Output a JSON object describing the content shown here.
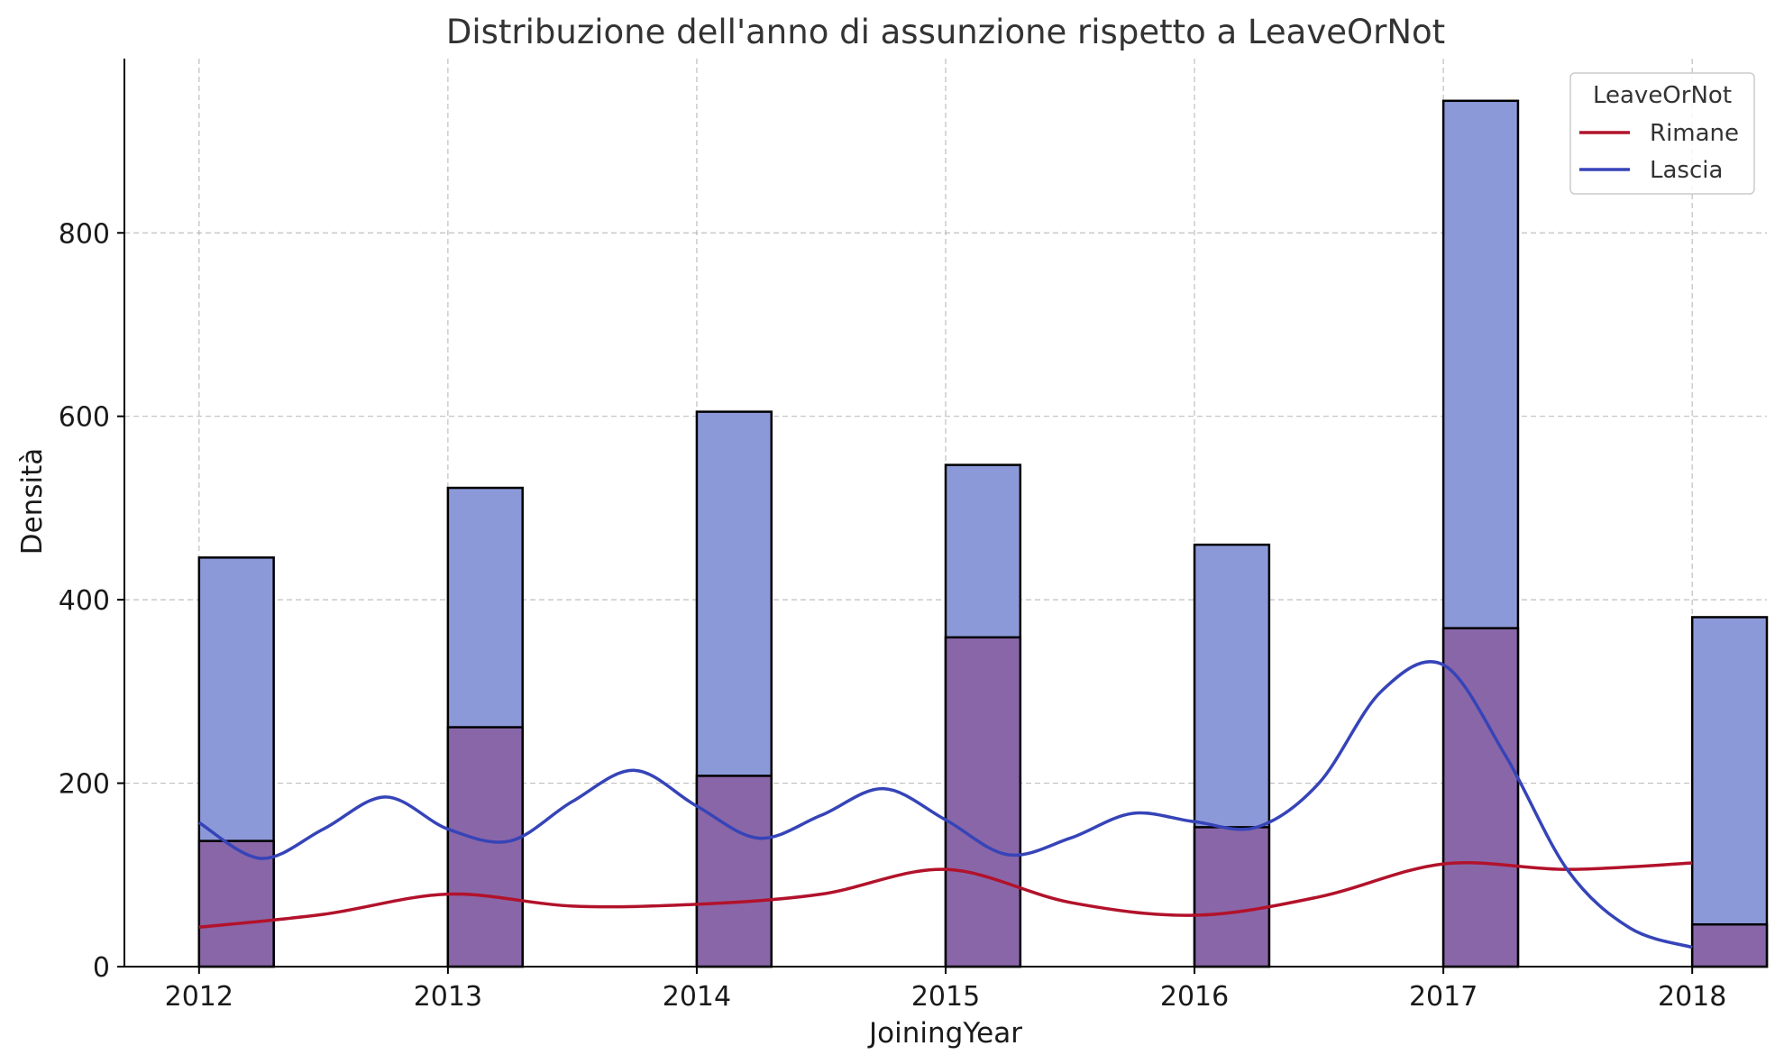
{
  "chart_data": {
    "type": "bar",
    "title": "Distribuzione dell'anno di assunzione rispetto a LeaveOrNot",
    "xlabel": "JoiningYear",
    "ylabel": "Densità",
    "x_ticks": [
      "2012",
      "2013",
      "2014",
      "2015",
      "2016",
      "2017",
      "2018"
    ],
    "y_ticks": [
      "0",
      "200",
      "400",
      "600",
      "800"
    ],
    "xlim": [
      2011.7,
      2018.3
    ],
    "ylim": [
      0,
      990
    ],
    "grid": true,
    "legend_placement": "top-right",
    "legend_title": "LeaveOrNot",
    "categories": [
      2012,
      2013,
      2014,
      2015,
      2016,
      2017,
      2018
    ],
    "series": [
      {
        "name": "Rimane",
        "bar_values": [
          446,
          522,
          605,
          547,
          460,
          944,
          381
        ],
        "kde_x": [
          2012,
          2012.5,
          2013,
          2013.5,
          2014,
          2014.5,
          2015,
          2015.5,
          2016,
          2016.5,
          2017,
          2017.5,
          2018
        ],
        "kde_y": [
          43,
          57,
          79,
          66,
          68,
          79,
          106,
          70,
          56,
          76,
          112,
          106,
          113
        ],
        "color": "#b2122b",
        "bar_fill": "#8c99d9",
        "bar_opacity": 0.85
      },
      {
        "name": "Lascia",
        "bar_values": [
          137,
          261,
          208,
          359,
          152,
          369,
          46
        ],
        "kde_x": [
          2012,
          2012.25,
          2012.5,
          2012.75,
          2013,
          2013.25,
          2013.5,
          2013.75,
          2014,
          2014.25,
          2014.5,
          2014.75,
          2015,
          2015.25,
          2015.5,
          2015.75,
          2016,
          2016.25,
          2016.5,
          2016.75,
          2017,
          2017.25,
          2017.5,
          2017.75,
          2018
        ],
        "kde_y": [
          157,
          118,
          150,
          185,
          150,
          137,
          180,
          214,
          175,
          140,
          165,
          194,
          160,
          122,
          140,
          167,
          158,
          152,
          200,
          300,
          329,
          230,
          105,
          42,
          21
        ],
        "color": "#3644b8",
        "bar_fill": "#d36a7e",
        "bar_opacity": 0.85
      }
    ]
  },
  "colors": {
    "overlap": "#8966a8",
    "bar_edge": "#000000",
    "grid": "#b0b0b0"
  }
}
